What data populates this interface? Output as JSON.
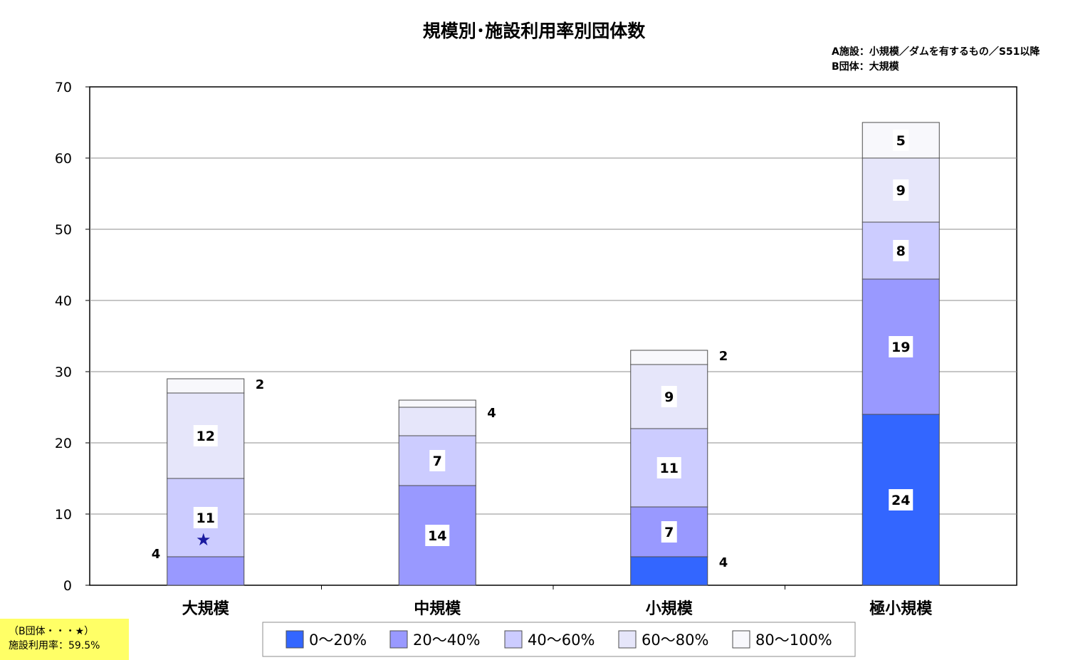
{
  "chart_data": {
    "type": "bar",
    "stacked": true,
    "title": "規模別･施設利用率別団体数",
    "notes": [
      "A施設：小規模／ダムを有するもの／S51以降",
      "B団体：大規模"
    ],
    "categories": [
      "大規模",
      "中規模",
      "小規模",
      "極小規模"
    ],
    "ylim": [
      0,
      70
    ],
    "yticks": [
      0,
      10,
      20,
      30,
      40,
      50,
      60,
      70
    ],
    "grid": true,
    "legend_position": "bottom",
    "series": [
      {
        "name": "0～20%",
        "color": "#3366ff",
        "values": [
          0,
          0,
          4,
          24
        ]
      },
      {
        "name": "20～40%",
        "color": "#9999ff",
        "values": [
          4,
          14,
          7,
          19
        ]
      },
      {
        "name": "40～60%",
        "color": "#ccccff",
        "values": [
          11,
          7,
          11,
          8
        ]
      },
      {
        "name": "60～80%",
        "color": "#e6e6fa",
        "values": [
          12,
          4,
          9,
          9
        ]
      },
      {
        "name": "80～100%",
        "color": "#f8f8fc",
        "values": [
          2,
          1,
          2,
          5
        ]
      }
    ],
    "data_labels": [
      {
        "category": 0,
        "series": 1,
        "text": "4",
        "placement": "left"
      },
      {
        "category": 0,
        "series": 2,
        "text": "11",
        "placement": "inside"
      },
      {
        "category": 0,
        "series": 3,
        "text": "12",
        "placement": "inside"
      },
      {
        "category": 0,
        "series": 4,
        "text": "2",
        "placement": "right"
      },
      {
        "category": 1,
        "series": 1,
        "text": "14",
        "placement": "inside"
      },
      {
        "category": 1,
        "series": 2,
        "text": "7",
        "placement": "inside"
      },
      {
        "category": 1,
        "series": 3,
        "text": "4",
        "placement": "right"
      },
      {
        "category": 2,
        "series": 0,
        "text": "4",
        "placement": "right"
      },
      {
        "category": 2,
        "series": 1,
        "text": "7",
        "placement": "inside"
      },
      {
        "category": 2,
        "series": 2,
        "text": "11",
        "placement": "inside"
      },
      {
        "category": 2,
        "series": 3,
        "text": "9",
        "placement": "inside"
      },
      {
        "category": 2,
        "series": 4,
        "text": "2",
        "placement": "right"
      },
      {
        "category": 3,
        "series": 0,
        "text": "24",
        "placement": "inside"
      },
      {
        "category": 3,
        "series": 1,
        "text": "19",
        "placement": "inside"
      },
      {
        "category": 3,
        "series": 2,
        "text": "8",
        "placement": "inside"
      },
      {
        "category": 3,
        "series": 3,
        "text": "9",
        "placement": "inside"
      },
      {
        "category": 3,
        "series": 4,
        "text": "5",
        "placement": "inside"
      }
    ],
    "marker": {
      "symbol": "★",
      "category": 0,
      "value": 6.5,
      "color": "#1a1aa0"
    }
  },
  "callout": {
    "line1": "（B団体・・・★）",
    "line2": "施設利用率：59.5%"
  }
}
